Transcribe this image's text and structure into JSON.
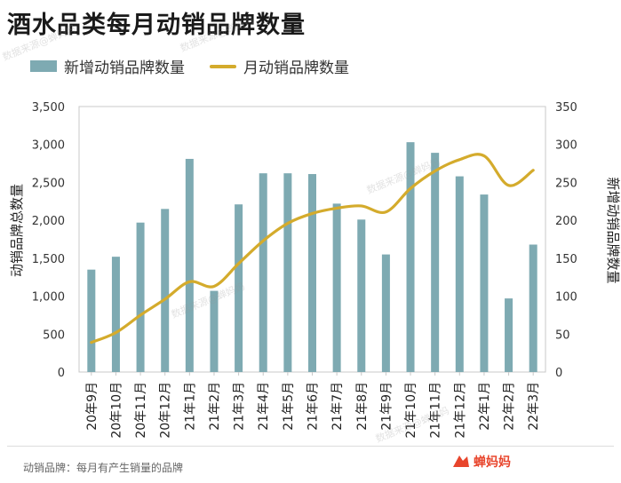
{
  "title": "酒水品类每月动销品牌数量",
  "legend": {
    "bar_label": "新增动销品牌数量",
    "line_label": "月动销品牌数量"
  },
  "footnote": "动销品牌：每月有产生销量的品牌",
  "brand": {
    "name": "蝉妈妈",
    "watermark_text": "数据来源@蝉妈妈"
  },
  "colors": {
    "bar": "#7eaab2",
    "line": "#d4ab2c",
    "brand": "#e8452c"
  },
  "chart_data": {
    "type": "bar+line",
    "categories": [
      "20年9月",
      "20年10月",
      "20年11月",
      "20年12月",
      "21年1月",
      "21年2月",
      "21年3月",
      "21年4月",
      "21年5月",
      "21年6月",
      "21年7月",
      "21年8月",
      "21年9月",
      "21年10月",
      "21年11月",
      "21年12月",
      "22年1月",
      "22年2月",
      "22年3月"
    ],
    "series": [
      {
        "name": "新增动销品牌数量",
        "type": "bar",
        "axis": "right",
        "values": [
          135,
          152,
          197,
          215,
          281,
          107,
          221,
          262,
          262,
          261,
          222,
          201,
          155,
          303,
          289,
          258,
          234,
          97,
          168
        ]
      },
      {
        "name": "月动销品牌数量",
        "type": "line",
        "axis": "left",
        "values": [
          390,
          520,
          750,
          960,
          1190,
          1130,
          1430,
          1730,
          1960,
          2090,
          2160,
          2190,
          2110,
          2420,
          2650,
          2800,
          2850,
          2460,
          2660
        ]
      }
    ],
    "ylabel_left": "动销品牌总数量",
    "ylabel_right": "新增动销品牌数量",
    "ylim_left": [
      0,
      3500
    ],
    "ylim_right": [
      0,
      350
    ],
    "yticks_left": [
      "0",
      "500",
      "1,000",
      "1,500",
      "2,000",
      "2,500",
      "3,000",
      "3,500"
    ],
    "yticks_right": [
      "0",
      "50",
      "100",
      "150",
      "200",
      "250",
      "300",
      "350"
    ],
    "grid": false,
    "legend_position": "top-left"
  }
}
